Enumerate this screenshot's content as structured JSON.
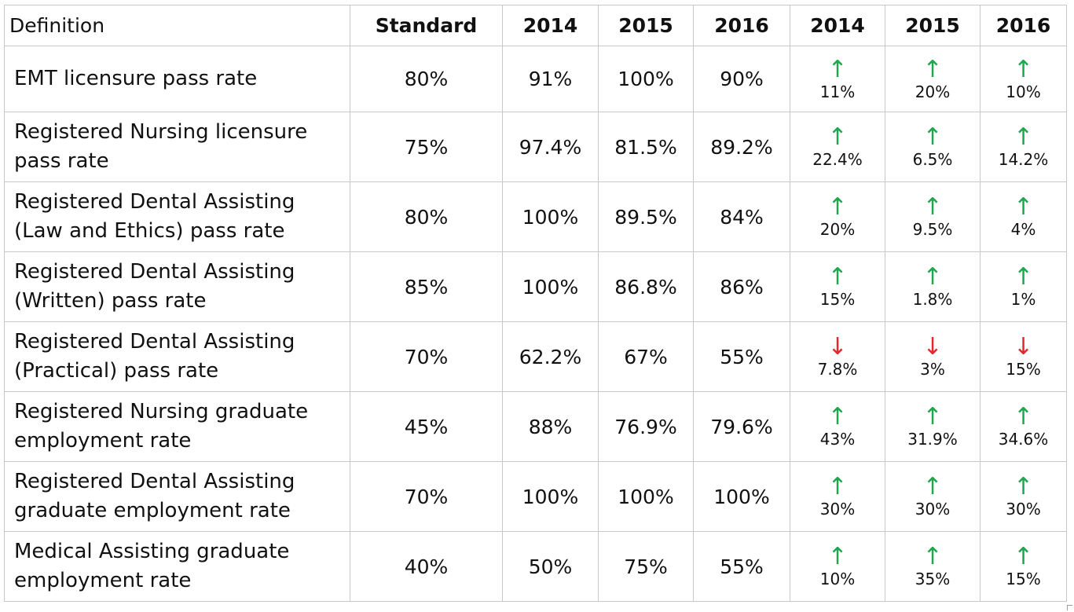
{
  "columns": [
    "Definition",
    "Standard",
    "2014",
    "2015",
    "2016",
    "2014",
    "2015",
    "2016"
  ],
  "rows": [
    {
      "definition": "EMT licensure pass rate",
      "standard": "80%",
      "values": [
        "91%",
        "100%",
        "90%"
      ],
      "changes": [
        {
          "direction": "up",
          "arrow": "↑",
          "value": "11%"
        },
        {
          "direction": "up",
          "arrow": "↑",
          "value": "20%"
        },
        {
          "direction": "up",
          "arrow": "↑",
          "value": "10%"
        }
      ]
    },
    {
      "definition": "Registered Nursing licensure pass rate",
      "standard": "75%",
      "values": [
        "97.4%",
        "81.5%",
        "89.2%"
      ],
      "changes": [
        {
          "direction": "up",
          "arrow": "↑",
          "value": "22.4%"
        },
        {
          "direction": "up",
          "arrow": "↑",
          "value": "6.5%"
        },
        {
          "direction": "up",
          "arrow": "↑",
          "value": "14.2%"
        }
      ]
    },
    {
      "definition": "Registered Dental Assisting (Law and Ethics) pass rate",
      "standard": "80%",
      "values": [
        "100%",
        "89.5%",
        "84%"
      ],
      "changes": [
        {
          "direction": "up",
          "arrow": "↑",
          "value": "20%"
        },
        {
          "direction": "up",
          "arrow": "↑",
          "value": "9.5%"
        },
        {
          "direction": "up",
          "arrow": "↑",
          "value": "4%"
        }
      ]
    },
    {
      "definition": "Registered Dental Assisting (Written) pass rate",
      "standard": "85%",
      "values": [
        "100%",
        "86.8%",
        "86%"
      ],
      "changes": [
        {
          "direction": "up",
          "arrow": "↑",
          "value": "15%"
        },
        {
          "direction": "up",
          "arrow": "↑",
          "value": "1.8%"
        },
        {
          "direction": "up",
          "arrow": "↑",
          "value": "1%"
        }
      ]
    },
    {
      "definition": "Registered Dental Assisting (Practical) pass rate",
      "standard": "70%",
      "values": [
        "62.2%",
        "67%",
        "55%"
      ],
      "changes": [
        {
          "direction": "down",
          "arrow": "↓",
          "value": "7.8%"
        },
        {
          "direction": "down",
          "arrow": "↓",
          "value": "3%"
        },
        {
          "direction": "down",
          "arrow": "↓",
          "value": "15%"
        }
      ]
    },
    {
      "definition": "Registered Nursing graduate employment rate",
      "standard": "45%",
      "values": [
        "88%",
        "76.9%",
        "79.6%"
      ],
      "changes": [
        {
          "direction": "up",
          "arrow": "↑",
          "value": "43%"
        },
        {
          "direction": "up",
          "arrow": "↑",
          "value": "31.9%"
        },
        {
          "direction": "up",
          "arrow": "↑",
          "value": "34.6%"
        }
      ]
    },
    {
      "definition": "Registered Dental Assisting graduate employment rate",
      "standard": "70%",
      "values": [
        "100%",
        "100%",
        "100%"
      ],
      "changes": [
        {
          "direction": "up",
          "arrow": "↑",
          "value": "30%"
        },
        {
          "direction": "up",
          "arrow": "↑",
          "value": "30%"
        },
        {
          "direction": "up",
          "arrow": "↑",
          "value": "30%"
        }
      ]
    },
    {
      "definition": "Medical Assisting graduate employment rate",
      "standard": "40%",
      "values": [
        "50%",
        "75%",
        "55%"
      ],
      "changes": [
        {
          "direction": "up",
          "arrow": "↑",
          "value": "10%"
        },
        {
          "direction": "up",
          "arrow": "↑",
          "value": "35%"
        },
        {
          "direction": "up",
          "arrow": "↑",
          "value": "15%"
        }
      ]
    }
  ],
  "colors": {
    "up_arrow": "#1fa64f",
    "down_arrow": "#e8262b",
    "grid": "#c8c8c8"
  },
  "icons": {
    "up": "arrow-up-icon",
    "down": "arrow-down-icon"
  }
}
